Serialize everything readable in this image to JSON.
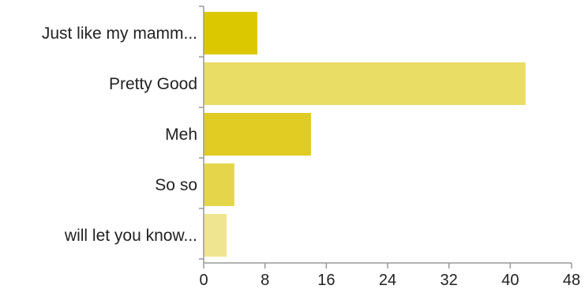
{
  "chart_data": {
    "type": "bar",
    "orientation": "horizontal",
    "title": "",
    "xlabel": "",
    "ylabel": "",
    "categories": [
      "Just like my mamm...",
      "Pretty Good",
      "Meh",
      "So so",
      "will let you know..."
    ],
    "values": [
      7,
      42,
      14,
      4,
      3
    ],
    "xlim": [
      0,
      48
    ],
    "xticks": [
      0,
      8,
      16,
      24,
      32,
      40,
      48
    ],
    "grid": false,
    "legend": "none",
    "bar_colors": [
      "#dcc800",
      "#e9dd66",
      "#e0cc22",
      "#e5d54b",
      "#efe591"
    ],
    "axis_color": "#999999"
  }
}
